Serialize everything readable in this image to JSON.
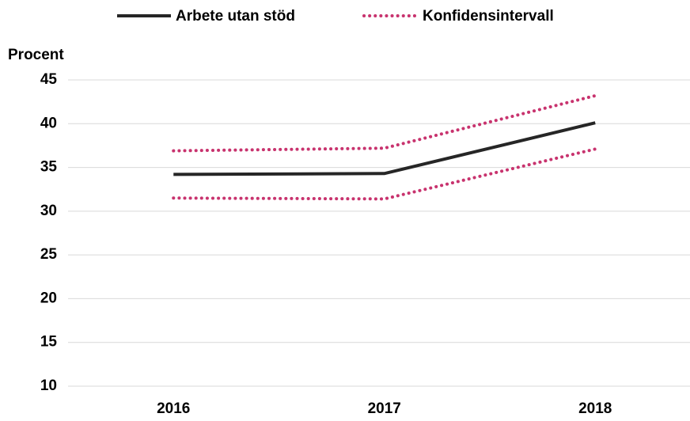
{
  "chart_data": {
    "type": "line",
    "y_label": "Procent",
    "categories": [
      "2016",
      "2017",
      "2018"
    ],
    "series": [
      {
        "name": "Arbete utan stöd",
        "color": "#262626",
        "values": [
          34.2,
          34.3,
          40.1
        ]
      },
      {
        "name": "Konfidensintervall",
        "color": "#c8336e",
        "style": "dotted",
        "upper": [
          36.9,
          37.2,
          43.2
        ],
        "lower": [
          31.5,
          31.4,
          37.1
        ]
      }
    ],
    "ylim": [
      10,
      45
    ],
    "yticks": [
      10,
      15,
      20,
      25,
      30,
      35,
      40,
      45
    ],
    "grid": true,
    "legend": "top"
  }
}
